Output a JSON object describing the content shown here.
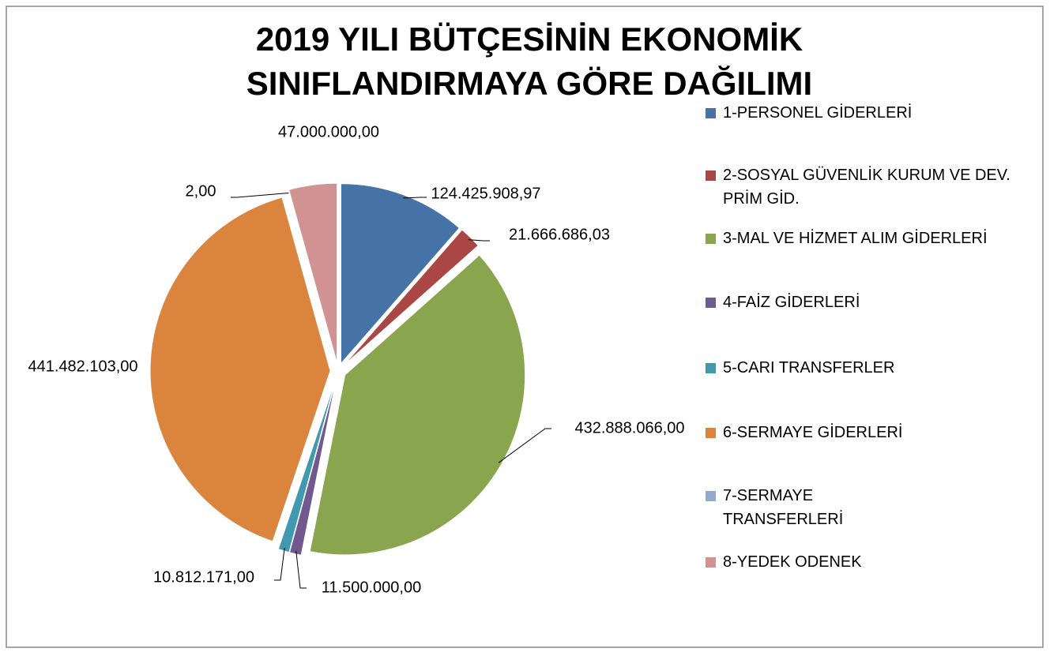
{
  "chart_data": {
    "type": "pie",
    "title": "2019 YILI BÜTÇESİNİN EKONOMİK SINIFLANDIRMAYA GÖRE DAĞILIMI",
    "categories": [
      "1-PERSONEL GİDERLERİ",
      "2-SOSYAL GÜVENLİK KURUM VE DEV. PRİM GİD.",
      "3-MAL VE HİZMET ALIM GİDERLERİ",
      "4-FAİZ  GİDERLERİ",
      "5-CARI TRANSFERLER",
      "6-SERMAYE GİDERLERİ",
      "7-SERMAYE TRANSFERLERİ",
      "8-YEDEK ODENEK"
    ],
    "values": [
      124425908.97,
      21666686.03,
      432888066,
      11500000,
      10812171,
      441482103,
      2,
      47000000
    ],
    "value_labels": [
      "124.425.908,97",
      "21.666.686,03",
      "432.888.066,00",
      "11.500.000,00",
      "10.812.171,00",
      "441.482.103,00",
      "2,00",
      "47.000.000,00"
    ],
    "colors": [
      "#4572a7",
      "#aa4643",
      "#89a54e",
      "#71588f",
      "#4198af",
      "#db843d",
      "#93a9cf",
      "#d19392"
    ],
    "legend": "right"
  }
}
